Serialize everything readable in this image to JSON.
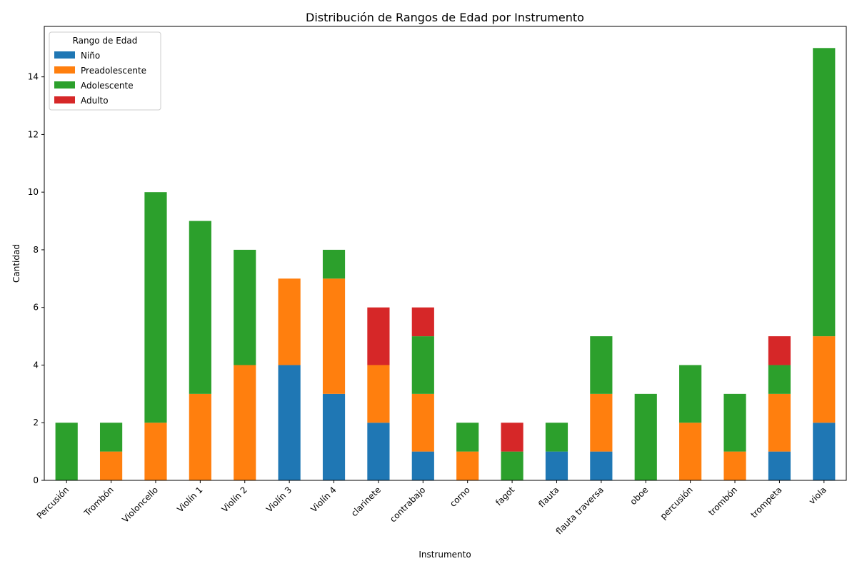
{
  "chart_data": {
    "type": "bar",
    "stacked": true,
    "title": "Distribución de Rangos de Edad por Instrumento",
    "xlabel": "Instrumento",
    "ylabel": "Cantidad",
    "ylim": [
      0,
      15.75
    ],
    "yticks": [
      0,
      2,
      4,
      6,
      8,
      10,
      12,
      14
    ],
    "grid": false,
    "legend_title": "Rango de Edad",
    "legend_position": "upper-left",
    "categories": [
      "Percusión",
      "Trombón",
      "Violoncello",
      "Violín 1",
      "Violín 2",
      "Violín 3",
      "Violín 4",
      "clarinete",
      "contrabajo",
      "corno",
      "fagot",
      "flauta",
      "flauta traversa",
      "oboe",
      "percusión",
      "trombón",
      "trompeta",
      "viola"
    ],
    "series": [
      {
        "name": "Niño",
        "color": "#1f77b4",
        "values": [
          0,
          0,
          0,
          0,
          0,
          4,
          3,
          2,
          1,
          0,
          0,
          1,
          1,
          0,
          0,
          0,
          1,
          2
        ]
      },
      {
        "name": "Preadolescente",
        "color": "#ff7f0e",
        "values": [
          0,
          1,
          2,
          3,
          4,
          3,
          4,
          2,
          2,
          1,
          0,
          0,
          2,
          0,
          2,
          1,
          2,
          3
        ]
      },
      {
        "name": "Adolescente",
        "color": "#2ca02c",
        "values": [
          2,
          1,
          8,
          6,
          4,
          0,
          1,
          0,
          2,
          1,
          1,
          1,
          2,
          3,
          2,
          2,
          1,
          10
        ]
      },
      {
        "name": "Adulto",
        "color": "#d62728",
        "values": [
          0,
          0,
          0,
          0,
          0,
          0,
          0,
          2,
          1,
          0,
          1,
          0,
          0,
          0,
          0,
          0,
          1,
          0
        ]
      }
    ]
  }
}
